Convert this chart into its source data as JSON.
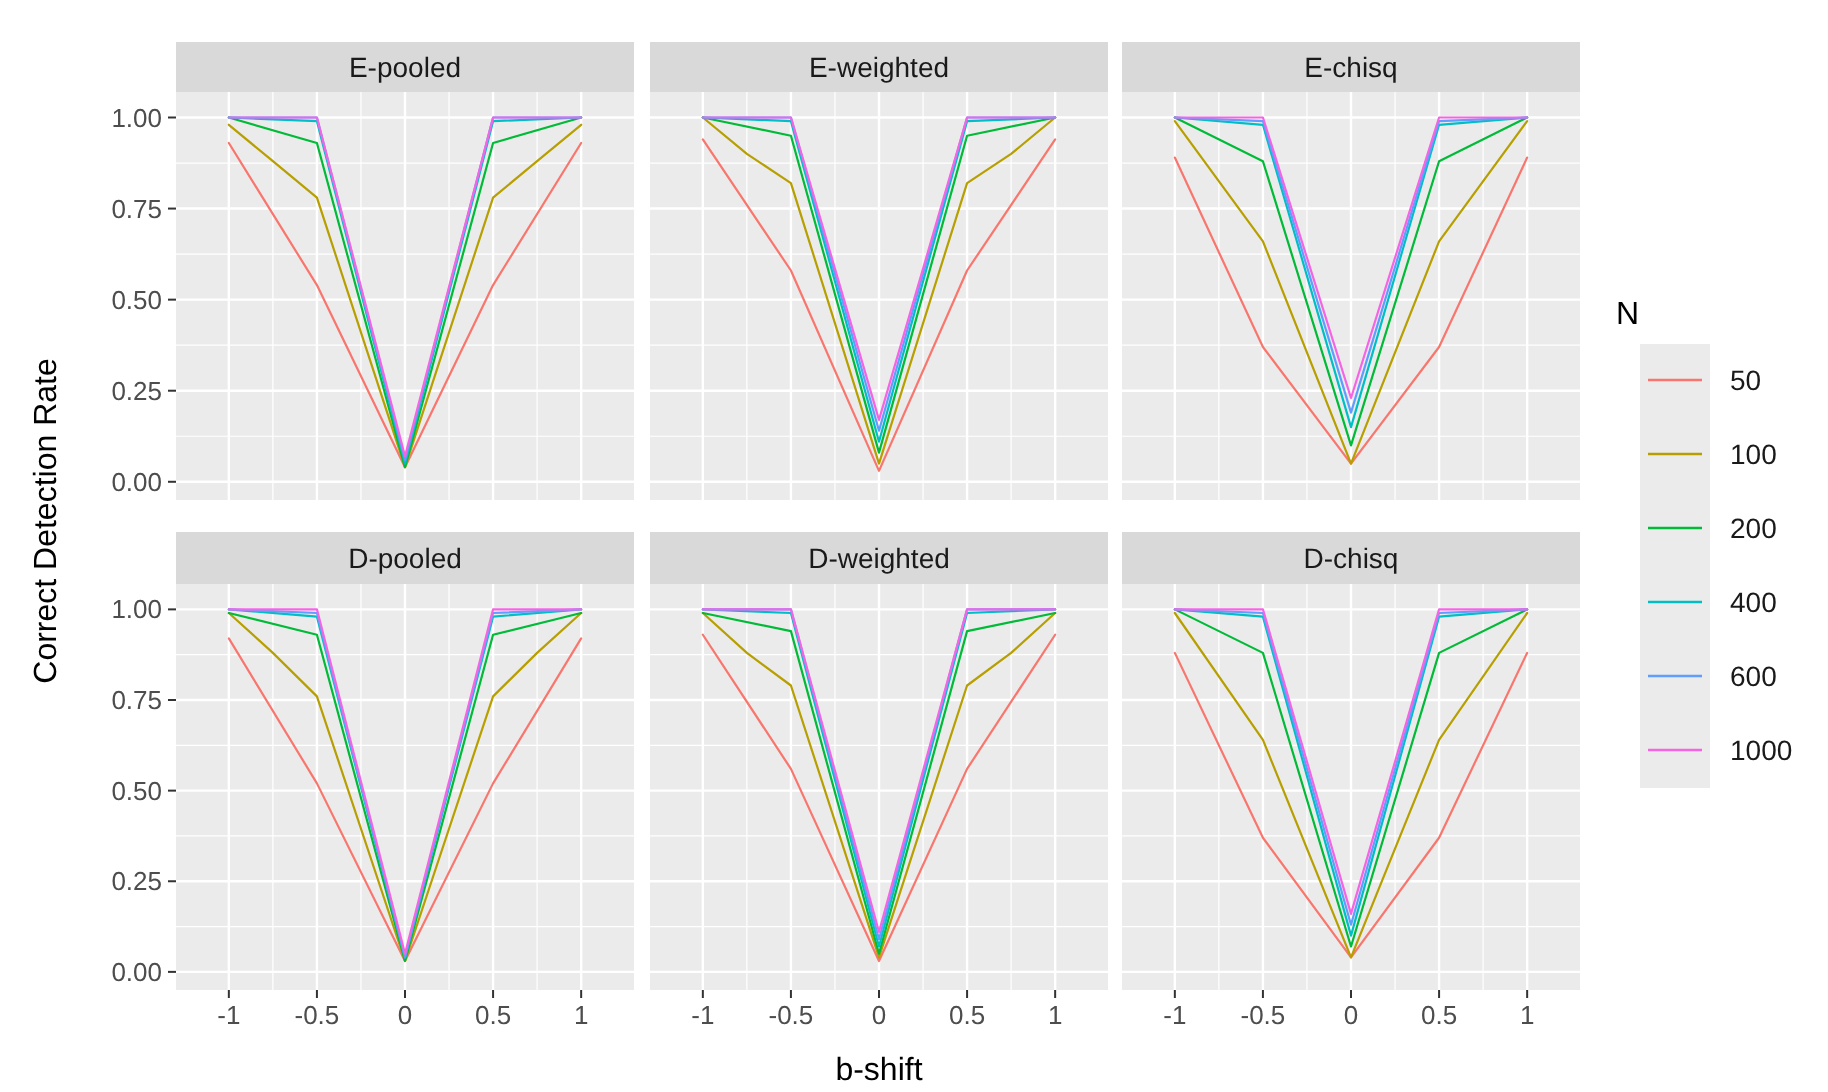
{
  "chart_data": [
    {
      "type": "line",
      "title": "E-pooled",
      "legend": "right",
      "legend_title": "N",
      "x": [
        -1,
        -0.5,
        0,
        0.5,
        1
      ],
      "xlim": [
        -1.3,
        1.3
      ],
      "xticks": [
        -1,
        -0.5,
        0,
        0.5,
        1
      ],
      "ylim": [
        -0.05,
        1.07
      ],
      "yticks": [
        {
          "value": 0,
          "label": "0.00"
        },
        {
          "value": 0.25,
          "label": "0.25"
        },
        {
          "value": 0.5,
          "label": "0.50"
        },
        {
          "value": 0.75,
          "label": "0.75"
        },
        {
          "value": 1,
          "label": "1.00"
        }
      ],
      "grid": true,
      "tick_labels": "y",
      "series": [
        {
          "name": "50",
          "color": "#f8766d",
          "values": [
            0.93,
            0.54,
            0.04,
            0.54,
            0.93
          ]
        },
        {
          "name": "100",
          "color": "#b79f00",
          "x": [
            -1,
            -0.75,
            -0.5,
            0,
            0.5,
            0.75,
            1
          ],
          "values": [
            0.98,
            0.88,
            0.78,
            0.04,
            0.78,
            0.88,
            0.98
          ]
        },
        {
          "name": "200",
          "color": "#00ba38",
          "values": [
            1.0,
            0.93,
            0.04,
            0.93,
            1.0
          ]
        },
        {
          "name": "400",
          "color": "#00bfc4",
          "values": [
            1.0,
            0.99,
            0.05,
            0.99,
            1.0
          ]
        },
        {
          "name": "600",
          "color": "#619cff",
          "values": [
            1.0,
            1.0,
            0.06,
            1.0,
            1.0
          ]
        },
        {
          "name": "1000",
          "color": "#f564e3",
          "values": [
            1.0,
            1.0,
            0.07,
            1.0,
            1.0
          ]
        }
      ]
    },
    {
      "type": "line",
      "title": "E-weighted",
      "x": [
        -1,
        -0.5,
        0,
        0.5,
        1
      ],
      "xlim": [
        -1.3,
        1.3
      ],
      "xticks": [
        -1,
        -0.5,
        0,
        0.5,
        1
      ],
      "ylim": [
        -0.05,
        1.07
      ],
      "yticks": [
        0,
        0.25,
        0.5,
        0.75,
        1
      ],
      "grid": true,
      "tick_labels": false,
      "series": [
        {
          "color": "#f8766d",
          "values": [
            0.94,
            0.58,
            0.03,
            0.58,
            0.94
          ]
        },
        {
          "color": "#b79f00",
          "x": [
            -1,
            -0.75,
            -0.5,
            0,
            0.5,
            0.75,
            1
          ],
          "values": [
            1.0,
            0.9,
            0.82,
            0.05,
            0.82,
            0.9,
            1.0
          ]
        },
        {
          "color": "#00ba38",
          "values": [
            1.0,
            0.95,
            0.08,
            0.95,
            1.0
          ]
        },
        {
          "color": "#00bfc4",
          "values": [
            1.0,
            0.99,
            0.11,
            0.99,
            1.0
          ]
        },
        {
          "color": "#619cff",
          "values": [
            1.0,
            1.0,
            0.14,
            1.0,
            1.0
          ]
        },
        {
          "color": "#f564e3",
          "values": [
            1.0,
            1.0,
            0.17,
            1.0,
            1.0
          ]
        }
      ]
    },
    {
      "type": "line",
      "title": "E-chisq",
      "x": [
        -1,
        -0.5,
        0,
        0.5,
        1
      ],
      "xlim": [
        -1.3,
        1.3
      ],
      "xticks": [
        -1,
        -0.5,
        0,
        0.5,
        1
      ],
      "ylim": [
        -0.05,
        1.07
      ],
      "yticks": [
        0,
        0.25,
        0.5,
        0.75,
        1
      ],
      "grid": true,
      "tick_labels": false,
      "series": [
        {
          "color": "#f8766d",
          "values": [
            0.89,
            0.37,
            0.05,
            0.37,
            0.89
          ]
        },
        {
          "color": "#b79f00",
          "values": [
            0.99,
            0.66,
            0.05,
            0.66,
            0.99
          ]
        },
        {
          "color": "#00ba38",
          "values": [
            1.0,
            0.88,
            0.1,
            0.88,
            1.0
          ]
        },
        {
          "color": "#00bfc4",
          "values": [
            1.0,
            0.98,
            0.15,
            0.98,
            1.0
          ]
        },
        {
          "color": "#619cff",
          "values": [
            1.0,
            0.99,
            0.19,
            0.99,
            1.0
          ]
        },
        {
          "color": "#f564e3",
          "values": [
            1.0,
            1.0,
            0.23,
            1.0,
            1.0
          ]
        }
      ]
    },
    {
      "type": "line",
      "title": "D-pooled",
      "ylabel": "Correct Detection Rate",
      "x": [
        -1,
        -0.5,
        0,
        0.5,
        1
      ],
      "xlim": [
        -1.3,
        1.3
      ],
      "xticks": [
        -1,
        -0.5,
        0,
        0.5,
        1
      ],
      "ylim": [
        -0.05,
        1.07
      ],
      "yticks": [
        {
          "value": 0,
          "label": "0.00"
        },
        {
          "value": 0.25,
          "label": "0.25"
        },
        {
          "value": 0.5,
          "label": "0.50"
        },
        {
          "value": 0.75,
          "label": "0.75"
        },
        {
          "value": 1,
          "label": "1.00"
        }
      ],
      "grid": true,
      "series": [
        {
          "color": "#f8766d",
          "values": [
            0.92,
            0.52,
            0.03,
            0.52,
            0.92
          ]
        },
        {
          "color": "#b79f00",
          "x": [
            -1,
            -0.75,
            -0.5,
            0,
            0.5,
            0.75,
            1
          ],
          "values": [
            0.99,
            0.88,
            0.76,
            0.03,
            0.76,
            0.88,
            0.99
          ]
        },
        {
          "color": "#00ba38",
          "values": [
            0.99,
            0.93,
            0.03,
            0.93,
            0.99
          ]
        },
        {
          "color": "#00bfc4",
          "values": [
            1.0,
            0.98,
            0.04,
            0.98,
            1.0
          ]
        },
        {
          "color": "#619cff",
          "values": [
            1.0,
            0.99,
            0.04,
            0.99,
            1.0
          ]
        },
        {
          "color": "#f564e3",
          "values": [
            1.0,
            1.0,
            0.05,
            1.0,
            1.0
          ]
        }
      ]
    },
    {
      "type": "line",
      "title": "D-weighted",
      "xlabel": "b-shift",
      "x": [
        -1,
        -0.5,
        0,
        0.5,
        1
      ],
      "xlim": [
        -1.3,
        1.3
      ],
      "xticks": [
        -1,
        -0.5,
        0,
        0.5,
        1
      ],
      "ylim": [
        -0.05,
        1.07
      ],
      "yticks": [
        0,
        0.25,
        0.5,
        0.75,
        1
      ],
      "grid": true,
      "tick_labels": "x",
      "series": [
        {
          "color": "#f8766d",
          "values": [
            0.93,
            0.56,
            0.03,
            0.56,
            0.93
          ]
        },
        {
          "color": "#b79f00",
          "x": [
            -1,
            -0.75,
            -0.5,
            0,
            0.5,
            0.75,
            1
          ],
          "values": [
            0.99,
            0.88,
            0.79,
            0.04,
            0.79,
            0.88,
            0.99
          ]
        },
        {
          "color": "#00ba38",
          "values": [
            0.99,
            0.94,
            0.05,
            0.94,
            0.99
          ]
        },
        {
          "color": "#00bfc4",
          "values": [
            1.0,
            0.99,
            0.07,
            0.99,
            1.0
          ]
        },
        {
          "color": "#619cff",
          "values": [
            1.0,
            1.0,
            0.09,
            1.0,
            1.0
          ]
        },
        {
          "color": "#f564e3",
          "values": [
            1.0,
            1.0,
            0.11,
            1.0,
            1.0
          ]
        }
      ]
    },
    {
      "type": "line",
      "title": "D-chisq",
      "x": [
        -1,
        -0.5,
        0,
        0.5,
        1
      ],
      "xlim": [
        -1.3,
        1.3
      ],
      "xticks": [
        -1,
        -0.5,
        0,
        0.5,
        1
      ],
      "ylim": [
        -0.05,
        1.07
      ],
      "yticks": [
        0,
        0.25,
        0.5,
        0.75,
        1
      ],
      "grid": true,
      "tick_labels": "x",
      "series": [
        {
          "color": "#f8766d",
          "values": [
            0.88,
            0.37,
            0.04,
            0.37,
            0.88
          ]
        },
        {
          "color": "#b79f00",
          "values": [
            0.99,
            0.64,
            0.04,
            0.64,
            0.99
          ]
        },
        {
          "color": "#00ba38",
          "values": [
            1.0,
            0.88,
            0.07,
            0.88,
            1.0
          ]
        },
        {
          "color": "#00bfc4",
          "values": [
            1.0,
            0.98,
            0.1,
            0.98,
            1.0
          ]
        },
        {
          "color": "#619cff",
          "values": [
            1.0,
            0.99,
            0.13,
            0.99,
            1.0
          ]
        },
        {
          "color": "#f564e3",
          "values": [
            1.0,
            1.0,
            0.16,
            1.0,
            1.0
          ]
        }
      ]
    }
  ]
}
